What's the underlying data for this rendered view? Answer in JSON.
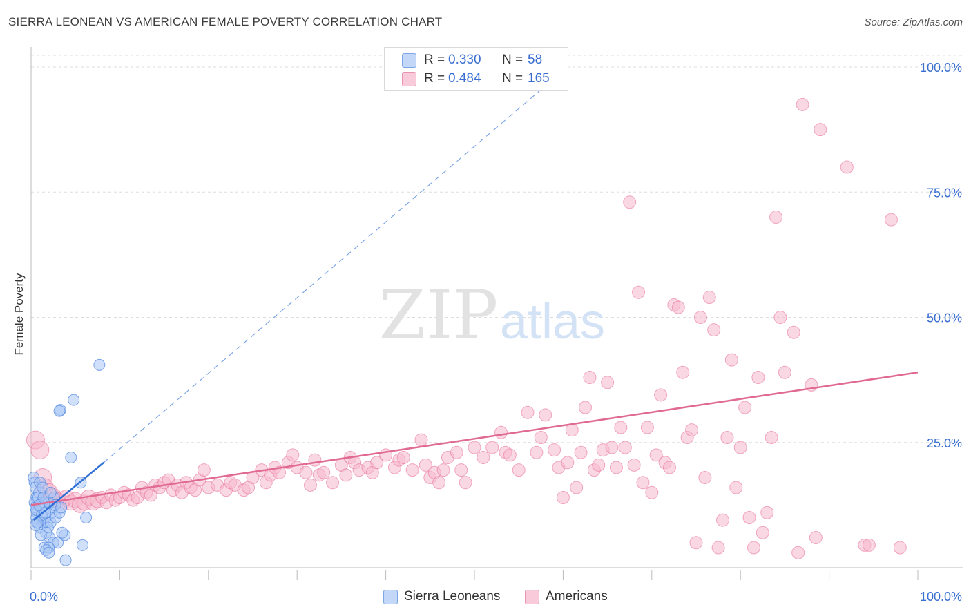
{
  "title": "SIERRA LEONEAN VS AMERICAN FEMALE POVERTY CORRELATION CHART",
  "source": "Source: ZipAtlas.com",
  "watermark": {
    "zip": "ZIP",
    "atlas": "atlas"
  },
  "colors": {
    "blue": "#5b8fe0",
    "blue_fill": "#a9c7f5",
    "pink": "#e8739b",
    "pink_fill": "#f6b8cc",
    "axis_text": "#3a6fd0",
    "grid": "#dddddd"
  },
  "legend_top": [
    {
      "r_label": "R =",
      "r_value": "0.330",
      "n_label": "N =",
      "n_value": "58"
    },
    {
      "r_label": "R =",
      "r_value": "0.484",
      "n_label": "N =",
      "n_value": "165"
    }
  ],
  "legend_bottom": [
    {
      "label": "Sierra Leoneans"
    },
    {
      "label": "Americans"
    }
  ],
  "chart_data": {
    "type": "scatter",
    "title": "SIERRA LEONEAN VS AMERICAN FEMALE POVERTY CORRELATION CHART",
    "xlabel": "",
    "ylabel": "Female Poverty",
    "xlim": [
      0,
      100
    ],
    "ylim": [
      0,
      100
    ],
    "x_tick_labels": [
      "0.0%",
      "100.0%"
    ],
    "y_tick_labels": [
      "25.0%",
      "50.0%",
      "75.0%",
      "100.0%"
    ],
    "y_ticks": [
      25,
      50,
      75,
      100
    ],
    "grid": true,
    "legend_position": "top-center",
    "series": [
      {
        "name": "Sierra Leoneans",
        "color": "#5b8fe0",
        "R": 0.33,
        "N": 58,
        "trend_solid": [
          [
            0.3,
            9.5
          ],
          [
            8.2,
            21.0
          ]
        ],
        "trend_dashed": [
          [
            8.2,
            21.0
          ],
          [
            60.5,
            100.0
          ]
        ],
        "points": [
          [
            0.3,
            18
          ],
          [
            0.4,
            17
          ],
          [
            0.5,
            16
          ],
          [
            0.6,
            14
          ],
          [
            0.4,
            13
          ],
          [
            0.5,
            12
          ],
          [
            0.7,
            11
          ],
          [
            0.6,
            10
          ],
          [
            0.8,
            9
          ],
          [
            1.0,
            8
          ],
          [
            0.9,
            15
          ],
          [
            1.2,
            13
          ],
          [
            1.1,
            12
          ],
          [
            1.4,
            9
          ],
          [
            1.6,
            10
          ],
          [
            1.8,
            9
          ],
          [
            1.9,
            8
          ],
          [
            2.2,
            9
          ],
          [
            2.4,
            12
          ],
          [
            2.6,
            14
          ],
          [
            1.0,
            17
          ],
          [
            0.8,
            14
          ],
          [
            1.3,
            16
          ],
          [
            1.5,
            13
          ],
          [
            2.0,
            13
          ],
          [
            2.3,
            11
          ],
          [
            2.8,
            10
          ],
          [
            3.2,
            11
          ],
          [
            1.7,
            7
          ],
          [
            2.1,
            6
          ],
          [
            2.5,
            5
          ],
          [
            3.0,
            5
          ],
          [
            1.5,
            4
          ],
          [
            2.0,
            4
          ],
          [
            1.7,
            3.5
          ],
          [
            2.0,
            3
          ],
          [
            3.8,
            6.5
          ],
          [
            3.5,
            7
          ],
          [
            3.9,
            1.5
          ],
          [
            5.8,
            4.5
          ],
          [
            6.2,
            10
          ],
          [
            5.6,
            17
          ],
          [
            4.5,
            22
          ],
          [
            3.3,
            31.5
          ],
          [
            3.2,
            31.3
          ],
          [
            4.8,
            33.5
          ],
          [
            7.7,
            40.5
          ],
          [
            0.6,
            11.5
          ],
          [
            0.9,
            12.5
          ],
          [
            1.2,
            10.5
          ],
          [
            1.6,
            11
          ],
          [
            0.5,
            8.5
          ],
          [
            2.7,
            12.5
          ],
          [
            3.4,
            12
          ],
          [
            0.7,
            9
          ],
          [
            1.4,
            14
          ],
          [
            2.2,
            15
          ],
          [
            1.1,
            6.5
          ]
        ]
      },
      {
        "name": "Americans",
        "color": "#e8739b",
        "R": 0.484,
        "N": 165,
        "trend": [
          [
            0.0,
            12.5
          ],
          [
            100.0,
            39.0
          ]
        ],
        "points": [
          [
            0.5,
            25.5
          ],
          [
            1.0,
            23.5
          ],
          [
            1.3,
            18
          ],
          [
            1.5,
            16
          ],
          [
            2.0,
            15
          ],
          [
            2.5,
            14
          ],
          [
            3.0,
            13.5
          ],
          [
            3.5,
            13
          ],
          [
            4.0,
            14
          ],
          [
            4.5,
            13
          ],
          [
            5.0,
            13.5
          ],
          [
            5.5,
            12.5
          ],
          [
            6.0,
            13
          ],
          [
            6.5,
            14
          ],
          [
            7.0,
            13
          ],
          [
            7.5,
            13.5
          ],
          [
            8.0,
            14
          ],
          [
            8.5,
            13
          ],
          [
            9.0,
            14.5
          ],
          [
            9.5,
            13.5
          ],
          [
            10.0,
            14
          ],
          [
            10.5,
            15
          ],
          [
            11.0,
            14.5
          ],
          [
            11.5,
            13.5
          ],
          [
            12.0,
            14
          ],
          [
            12.5,
            16
          ],
          [
            13.0,
            15
          ],
          [
            13.5,
            14.5
          ],
          [
            14.0,
            16.5
          ],
          [
            14.5,
            16
          ],
          [
            15.0,
            17
          ],
          [
            15.5,
            17.5
          ],
          [
            16.0,
            15.5
          ],
          [
            16.5,
            16.5
          ],
          [
            17.0,
            15
          ],
          [
            17.5,
            17
          ],
          [
            18.0,
            16
          ],
          [
            18.5,
            15.5
          ],
          [
            19.0,
            17.5
          ],
          [
            19.5,
            19.5
          ],
          [
            20.0,
            16
          ],
          [
            21.0,
            16.5
          ],
          [
            22.0,
            15.5
          ],
          [
            22.5,
            17
          ],
          [
            23.0,
            16.5
          ],
          [
            24.0,
            15.5
          ],
          [
            24.5,
            16
          ],
          [
            25.0,
            18
          ],
          [
            26.0,
            19.5
          ],
          [
            26.5,
            17
          ],
          [
            27.0,
            18.5
          ],
          [
            27.5,
            20
          ],
          [
            28.0,
            19
          ],
          [
            29.0,
            21
          ],
          [
            29.5,
            22.5
          ],
          [
            30.0,
            20
          ],
          [
            31.0,
            19
          ],
          [
            31.5,
            16.5
          ],
          [
            32.0,
            21.5
          ],
          [
            32.5,
            18.5
          ],
          [
            33.0,
            19
          ],
          [
            34.0,
            17
          ],
          [
            35.0,
            20.5
          ],
          [
            35.5,
            18.5
          ],
          [
            36.0,
            22
          ],
          [
            36.5,
            21
          ],
          [
            37.0,
            19.5
          ],
          [
            38.0,
            20
          ],
          [
            38.5,
            19
          ],
          [
            39.0,
            21
          ],
          [
            40.0,
            22.5
          ],
          [
            41.0,
            20
          ],
          [
            41.5,
            21.5
          ],
          [
            42.0,
            22
          ],
          [
            43.0,
            19.5
          ],
          [
            44.0,
            25.5
          ],
          [
            44.5,
            20.5
          ],
          [
            45.0,
            18
          ],
          [
            45.5,
            19
          ],
          [
            46.0,
            17
          ],
          [
            46.5,
            19.5
          ],
          [
            47.0,
            22
          ],
          [
            48.0,
            23
          ],
          [
            48.5,
            19.5
          ],
          [
            49.0,
            17
          ],
          [
            50.0,
            24
          ],
          [
            51.0,
            22
          ],
          [
            52.0,
            24
          ],
          [
            53.0,
            27
          ],
          [
            53.5,
            23
          ],
          [
            54.0,
            22.5
          ],
          [
            55.0,
            19.5
          ],
          [
            56.0,
            31
          ],
          [
            57.0,
            23
          ],
          [
            57.5,
            26
          ],
          [
            58.0,
            30.5
          ],
          [
            59.0,
            23.5
          ],
          [
            59.5,
            20
          ],
          [
            60.0,
            14
          ],
          [
            60.5,
            21
          ],
          [
            61.0,
            27.5
          ],
          [
            61.5,
            16
          ],
          [
            62.0,
            23
          ],
          [
            62.5,
            32
          ],
          [
            63.0,
            38
          ],
          [
            63.5,
            19.5
          ],
          [
            64.0,
            20.5
          ],
          [
            64.5,
            23.5
          ],
          [
            65.0,
            37
          ],
          [
            65.5,
            24
          ],
          [
            66.0,
            20
          ],
          [
            66.5,
            28
          ],
          [
            67.0,
            24
          ],
          [
            67.5,
            73
          ],
          [
            68.0,
            20.5
          ],
          [
            68.5,
            55
          ],
          [
            69.0,
            17
          ],
          [
            69.5,
            28
          ],
          [
            70.0,
            15
          ],
          [
            70.5,
            22.5
          ],
          [
            71.0,
            34.5
          ],
          [
            71.5,
            21
          ],
          [
            72.0,
            20
          ],
          [
            72.5,
            52.5
          ],
          [
            73.0,
            52
          ],
          [
            73.5,
            39
          ],
          [
            74.0,
            26
          ],
          [
            74.5,
            27.5
          ],
          [
            75.0,
            5
          ],
          [
            75.5,
            50
          ],
          [
            76.0,
            18
          ],
          [
            76.5,
            54
          ],
          [
            77.0,
            47.5
          ],
          [
            77.5,
            4
          ],
          [
            78.0,
            9.5
          ],
          [
            78.5,
            26
          ],
          [
            79.0,
            41.5
          ],
          [
            79.5,
            16
          ],
          [
            80.0,
            24
          ],
          [
            80.5,
            32
          ],
          [
            81.0,
            10
          ],
          [
            81.5,
            4
          ],
          [
            82.0,
            38
          ],
          [
            82.5,
            7
          ],
          [
            83.0,
            11
          ],
          [
            83.5,
            26
          ],
          [
            84.0,
            70
          ],
          [
            84.5,
            50
          ],
          [
            85.0,
            39
          ],
          [
            86.0,
            47
          ],
          [
            86.5,
            3
          ],
          [
            87.0,
            92.5
          ],
          [
            88.0,
            36.5
          ],
          [
            88.5,
            6
          ],
          [
            89.0,
            87.5
          ],
          [
            92.0,
            80
          ],
          [
            94.0,
            4.5
          ],
          [
            94.5,
            4.5
          ],
          [
            97.0,
            69.5
          ],
          [
            98.0,
            4
          ]
        ]
      }
    ]
  }
}
